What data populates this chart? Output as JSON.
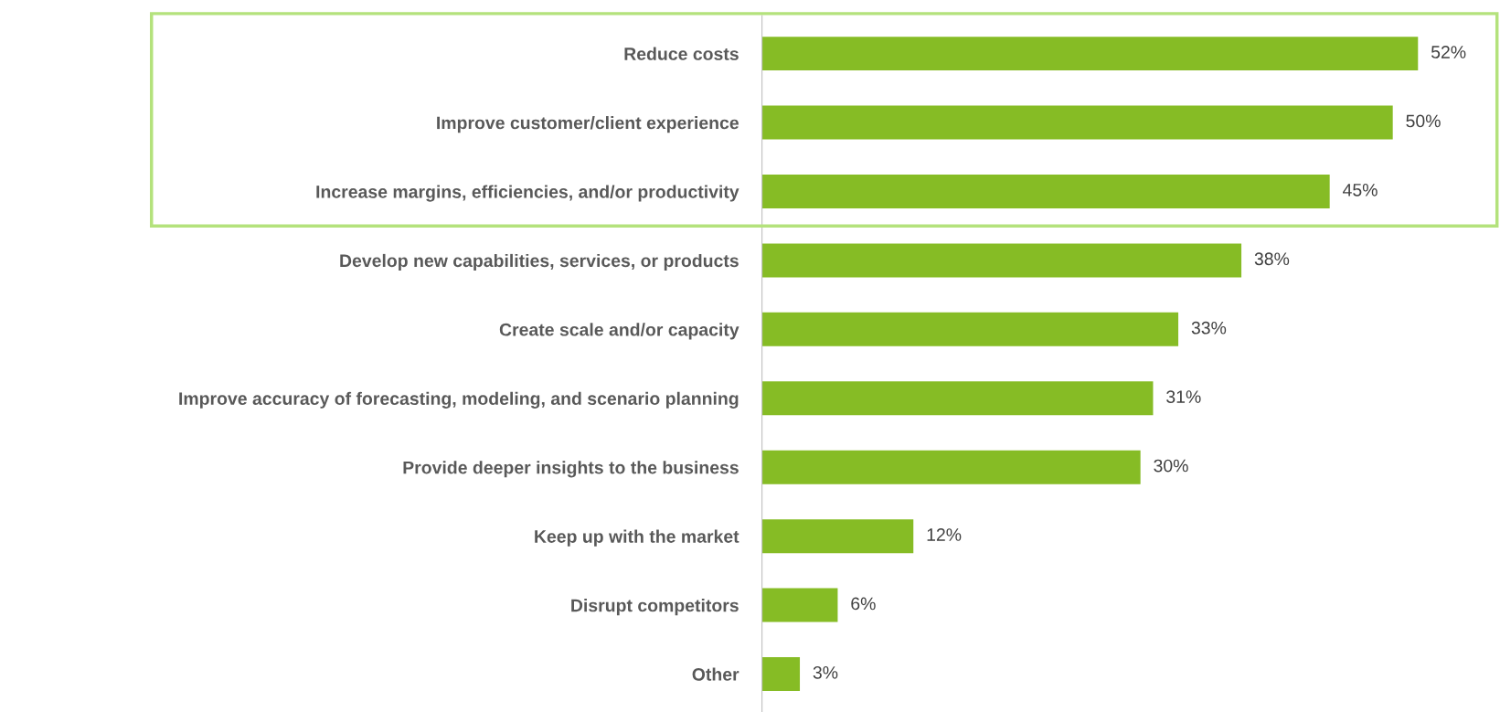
{
  "chart_data": {
    "type": "bar",
    "orientation": "horizontal",
    "categories": [
      "Reduce costs",
      "Improve customer/client experience",
      "Increase margins, efficiencies, and/or productivity",
      "Develop new capabilities, services, or products",
      "Create scale and/or capacity",
      "Improve accuracy of forecasting, modeling, and scenario planning",
      "Provide deeper insights to the business",
      "Keep up with the market",
      "Disrupt competitors",
      "Other"
    ],
    "values": [
      52,
      50,
      45,
      38,
      33,
      31,
      30,
      12,
      6,
      3
    ],
    "value_labels": [
      "52%",
      "50%",
      "45%",
      "38%",
      "33%",
      "31%",
      "30%",
      "12%",
      "6%",
      "3%"
    ],
    "color": "#86bc25",
    "grid": false,
    "legend": false
  }
}
